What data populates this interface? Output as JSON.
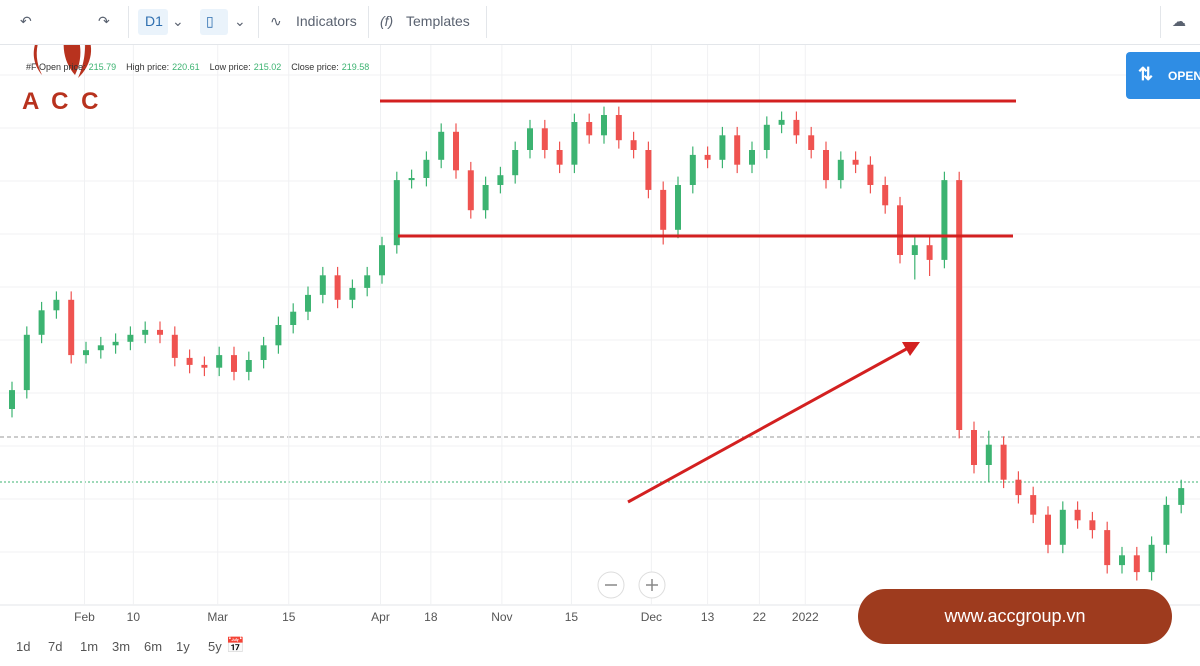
{
  "toolbar": {
    "interval": "D1",
    "indicators": "Indicators",
    "templates": "Templates",
    "open_button": "OPEN"
  },
  "logo": "A C C",
  "banner": "www.accgroup.vn",
  "ranges": [
    "1d",
    "7d",
    "1m",
    "3m",
    "6m",
    "1y",
    "5y"
  ],
  "legend": {
    "symbol": "#F",
    "items": [
      {
        "label": "Open price:",
        "value": "215.79"
      },
      {
        "label": "High price:",
        "value": "220.61"
      },
      {
        "label": "Low price:",
        "value": "215.02"
      },
      {
        "label": "Close price:",
        "value": "219.58"
      }
    ]
  },
  "chart_data": {
    "type": "candlestick",
    "up_color": "#3cb371",
    "down_color": "#ef5350",
    "ylim": [
      180,
      260
    ],
    "xticks": [
      {
        "value": 4.9,
        "label": "Feb"
      },
      {
        "value": 8.2,
        "label": "10"
      },
      {
        "value": 13.9,
        "label": "Mar"
      },
      {
        "value": 18.7,
        "label": "15"
      },
      {
        "value": 24.9,
        "label": "Apr"
      },
      {
        "value": 28.3,
        "label": "18"
      },
      {
        "value": 33.1,
        "label": "Nov"
      },
      {
        "value": 37.8,
        "label": "15"
      },
      {
        "value": 43.2,
        "label": "Dec"
      },
      {
        "value": 47,
        "label": "13"
      },
      {
        "value": 50.5,
        "label": "22"
      },
      {
        "value": 53.6,
        "label": "2022"
      }
    ],
    "open": [
      208,
      210.7,
      218.6,
      222.1,
      223.6,
      215.7,
      216.4,
      217.1,
      217.6,
      218.6,
      219.3,
      218.6,
      215.3,
      214.3,
      213.9,
      215.7,
      213.3,
      215,
      217.1,
      220,
      221.9,
      224.3,
      227.1,
      223.6,
      225.3,
      227.1,
      231.4,
      240.7,
      241,
      243.6,
      247.6,
      242.1,
      236.4,
      240,
      241.4,
      245,
      248.1,
      245,
      242.9,
      249,
      247.1,
      250,
      246.4,
      245,
      239.3,
      233.6,
      240,
      244.3,
      243.6,
      247.1,
      242.9,
      245,
      248.6,
      249.3,
      247.1,
      245,
      240.7,
      243.6,
      242.9,
      240,
      237.1,
      230,
      231.4,
      229.3,
      240.7,
      205,
      200,
      202.9,
      197.9,
      195.7,
      192.9,
      188.6,
      193.6,
      192.1,
      190.7,
      185.7,
      187.1,
      184.7,
      188.6,
      194.3
    ],
    "high": [
      211.9,
      219.8,
      223.3,
      224.8,
      224.8,
      217.6,
      218.3,
      218.8,
      219.8,
      220.5,
      220.5,
      219.8,
      216.5,
      215.5,
      216.9,
      216.9,
      216.2,
      218.3,
      221.2,
      223.1,
      225.5,
      228.3,
      228.3,
      226.5,
      228.3,
      232.6,
      241.9,
      242.2,
      244.8,
      248.8,
      248.8,
      243.3,
      241.2,
      242.6,
      246.2,
      249.3,
      249.3,
      246.2,
      250.2,
      250.2,
      251.2,
      251.2,
      247.6,
      246.2,
      240.5,
      241.2,
      245.5,
      245.5,
      248.3,
      248.3,
      246.2,
      249.8,
      250.5,
      250.5,
      248.3,
      246.2,
      244.8,
      244.8,
      244.1,
      241.2,
      238.3,
      232.6,
      232.6,
      241.9,
      241.9,
      206.2,
      204.9,
      204.1,
      199.1,
      196.9,
      194.1,
      194.8,
      194.8,
      193.3,
      191.9,
      188.3,
      188.3,
      189.8,
      195.5,
      197.9
    ],
    "low": [
      206.8,
      209.5,
      217.4,
      220.9,
      214.5,
      214.5,
      215.2,
      215.9,
      216.4,
      217.4,
      217.4,
      214.1,
      213.1,
      212.7,
      212.7,
      212.1,
      212.1,
      213.8,
      215.9,
      218.8,
      220.7,
      223.1,
      222.4,
      222.4,
      224.1,
      225.9,
      230.2,
      239.5,
      239.8,
      242.4,
      240.9,
      235.2,
      235.2,
      238.8,
      240.2,
      243.8,
      243.8,
      241.7,
      241.7,
      245.9,
      245.9,
      245.2,
      243.8,
      238.1,
      231.5,
      232.4,
      238.8,
      242.4,
      242.4,
      241.7,
      241.7,
      243.8,
      247.4,
      245.9,
      243.8,
      239.5,
      239.5,
      241.7,
      238.8,
      235.9,
      228.8,
      226.5,
      227,
      228.1,
      203.8,
      198.8,
      197.5,
      196.7,
      194.5,
      191.7,
      187.4,
      187.4,
      190.9,
      189.5,
      184.5,
      184.5,
      183.5,
      183.5,
      187.4,
      193.1
    ],
    "close": [
      210.7,
      218.6,
      222.1,
      223.6,
      215.7,
      216.4,
      217.1,
      217.6,
      218.6,
      219.3,
      218.6,
      215.3,
      214.3,
      213.9,
      215.7,
      213.3,
      215,
      217.1,
      220,
      221.9,
      224.3,
      227.1,
      223.6,
      225.3,
      227.1,
      231.4,
      240.7,
      241,
      243.6,
      247.6,
      242.1,
      236.4,
      240,
      241.4,
      245,
      248.1,
      245,
      242.9,
      249,
      247.1,
      250,
      246.4,
      245,
      239.3,
      233.6,
      240,
      244.3,
      243.6,
      247.1,
      242.9,
      245,
      248.6,
      249.3,
      247.1,
      245,
      240.7,
      243.6,
      242.9,
      240,
      237.1,
      230,
      231.4,
      229.3,
      240.7,
      205,
      200,
      202.9,
      197.9,
      195.7,
      192.9,
      188.6,
      193.6,
      192.1,
      190.7,
      185.7,
      187.1,
      184.7,
      188.6,
      194.3,
      196.7
    ]
  }
}
